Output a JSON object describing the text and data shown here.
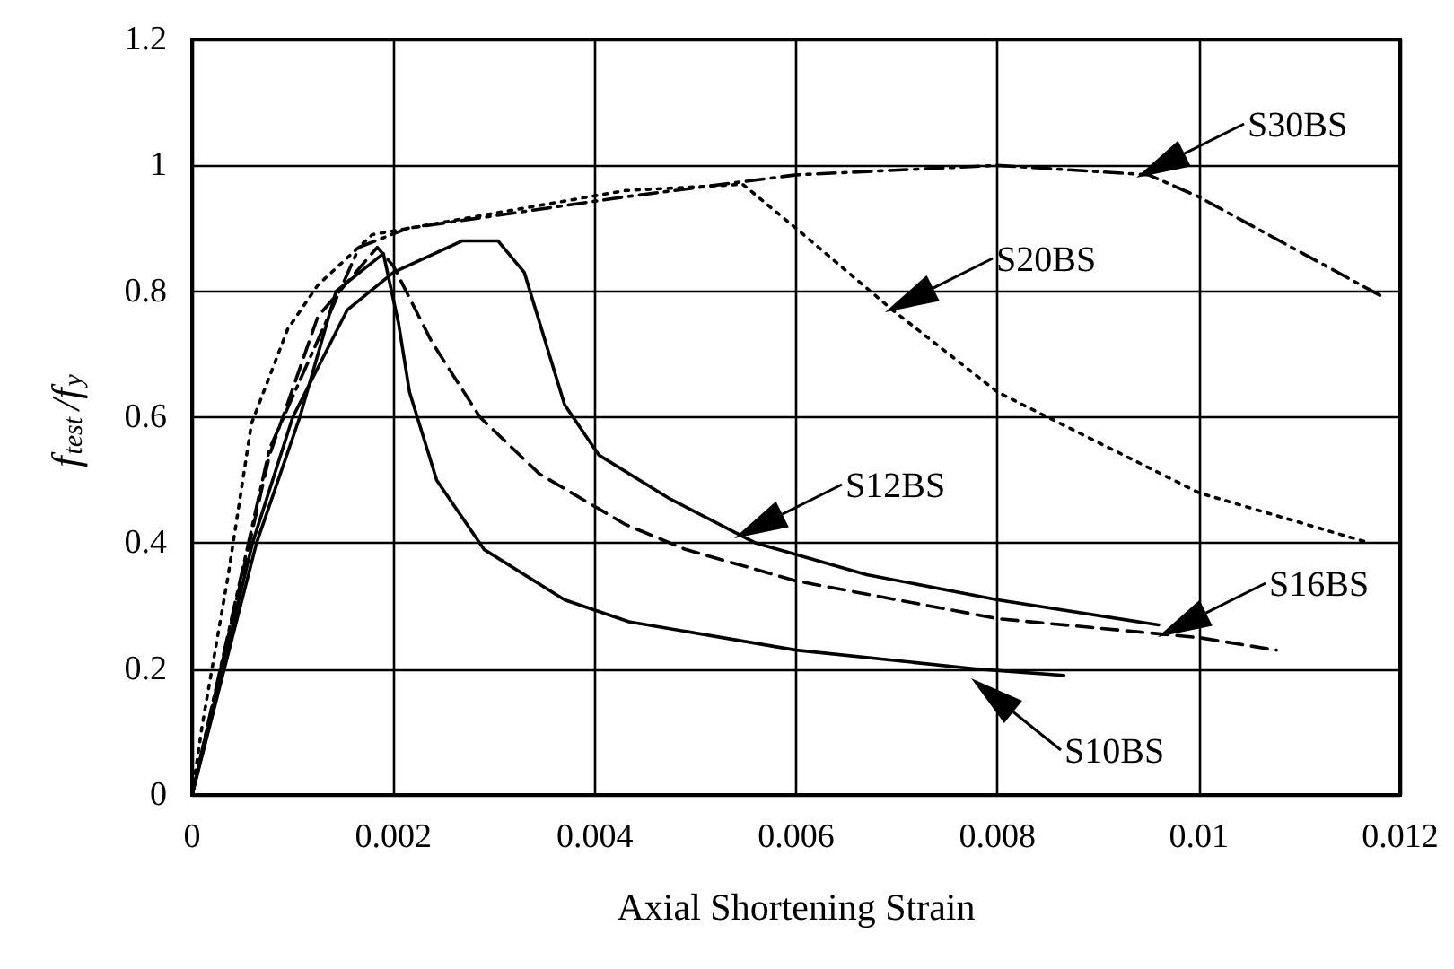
{
  "chart_data": {
    "type": "line",
    "xlabel": "Axial Shortening Strain",
    "ylabel": "f$_{test}$/f$_{y}$",
    "xlim": [
      0,
      0.012
    ],
    "xticks": [
      0,
      0.002,
      0.004,
      0.006,
      0.008,
      0.01,
      0.012
    ],
    "ylim": [
      0,
      1.2
    ],
    "yticks": [
      0,
      0.2,
      0.4,
      0.6,
      0.8,
      1,
      1.2
    ],
    "grid": true,
    "marker": "none",
    "series": [
      {
        "color": "#000000",
        "line_style": "solid",
        "x": [
          0,
          0.00064,
          0.00107,
          0.00143,
          0.0019,
          0.00205,
          0.00216,
          0.00243,
          0.0029,
          0.0037,
          0.00434,
          0.006,
          0.0078,
          0.00866
        ],
        "values": [
          0,
          0.4,
          0.6,
          0.8,
          0.86,
          0.75,
          0.64,
          0.5,
          0.39,
          0.31,
          0.275,
          0.23,
          0.2,
          0.19
        ]
      },
      {
        "color": "#000000",
        "line_style": "solid",
        "x": [
          0,
          0.0006,
          0.001,
          0.00154,
          0.002,
          0.00268,
          0.00304,
          0.0033,
          0.0037,
          0.00404,
          0.00475,
          0.0056,
          0.0067,
          0.008,
          0.0096
        ],
        "values": [
          0,
          0.4,
          0.6,
          0.77,
          0.83,
          0.88,
          0.88,
          0.83,
          0.62,
          0.54,
          0.47,
          0.4,
          0.35,
          0.31,
          0.27
        ]
      },
      {
        "color": "#000000",
        "line_style": "dashed",
        "x": [
          0,
          0.00077,
          0.00125,
          0.00184,
          0.002,
          0.00238,
          0.00286,
          0.00345,
          0.0043,
          0.0049,
          0.006,
          0.008,
          0.01,
          0.01077
        ],
        "values": [
          0,
          0.54,
          0.76,
          0.87,
          0.84,
          0.72,
          0.6,
          0.51,
          0.43,
          0.39,
          0.34,
          0.28,
          0.25,
          0.23
        ]
      },
      {
        "color": "#000000",
        "line_style": "dotted",
        "x": [
          0,
          0.0001,
          0.00036,
          0.00059,
          0.00095,
          0.00125,
          0.00179,
          0.00286,
          0.0043,
          0.00547,
          0.006,
          0.00696,
          0.008,
          0.01,
          0.0117
        ],
        "values": [
          0,
          0.11,
          0.35,
          0.59,
          0.74,
          0.81,
          0.89,
          0.92,
          0.96,
          0.97,
          0.9,
          0.77,
          0.64,
          0.48,
          0.4
        ]
      },
      {
        "color": "#000000",
        "line_style": "dashdot",
        "x": [
          0,
          0.00077,
          0.00166,
          0.00214,
          0.0043,
          0.006,
          0.008,
          0.009,
          0.0095,
          0.01,
          0.01184
        ],
        "values": [
          0,
          0.55,
          0.87,
          0.9,
          0.95,
          0.985,
          1,
          0.99,
          0.985,
          0.95,
          0.79
        ]
      }
    ],
    "annotations": [
      "S30BS",
      "S20BS",
      "S12BS",
      "S16BS",
      "S10BS"
    ]
  }
}
